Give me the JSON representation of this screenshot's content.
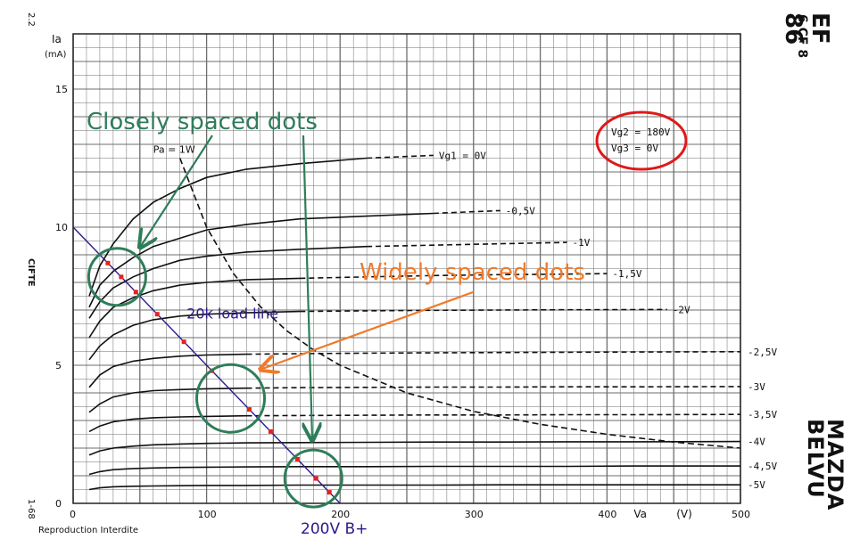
{
  "document": {
    "tube_code": "EF 86",
    "tube_equivalent": "6 CF 8",
    "manufacturer_line1": "MAZDA",
    "manufacturer_line2": "BELVU",
    "page_number": "2.2",
    "code_bottom": "1-68",
    "side_label": "CIFTE",
    "footer_note": "Reproduction Interdite"
  },
  "chart_data": {
    "type": "line",
    "title": "",
    "xlabel": "Va (V)",
    "ylabel": "Ia (mA)",
    "xlim": [
      0,
      500
    ],
    "ylim": [
      0,
      17
    ],
    "x_ticks": [
      0,
      100,
      200,
      300,
      400,
      500
    ],
    "x_tick_labels": [
      "0",
      "100",
      "200",
      "300",
      "400",
      "500"
    ],
    "y_ticks": [
      0,
      5,
      10,
      15
    ],
    "y_tick_labels": [
      "0",
      "5",
      "10",
      "15"
    ],
    "grid": true,
    "conditions": {
      "line1": "Vg2 = 180V",
      "line2": "Vg3 = 0V"
    },
    "series": [
      {
        "name": "Vg1 = 0V",
        "label": "Vg1 = 0V",
        "label_va": 270,
        "solid_to": 240,
        "x": [
          12,
          20,
          30,
          45,
          60,
          80,
          100,
          130,
          170,
          220,
          270
        ],
        "y": [
          7.5,
          8.6,
          9.4,
          10.3,
          10.9,
          11.4,
          11.8,
          12.1,
          12.3,
          12.5,
          12.6
        ]
      },
      {
        "name": "-0,5V",
        "label": "-0,5V",
        "label_va": 320,
        "solid_to": 300,
        "x": [
          12,
          20,
          30,
          45,
          60,
          80,
          100,
          130,
          170,
          220,
          270,
          320
        ],
        "y": [
          7.1,
          7.9,
          8.4,
          8.9,
          9.3,
          9.6,
          9.9,
          10.1,
          10.3,
          10.4,
          10.5,
          10.6
        ]
      },
      {
        "name": "-1V",
        "label": "-1V",
        "label_va": 370,
        "solid_to": 260,
        "x": [
          12,
          20,
          30,
          45,
          60,
          80,
          100,
          130,
          170,
          220,
          270,
          320,
          370
        ],
        "y": [
          6.7,
          7.3,
          7.8,
          8.2,
          8.5,
          8.8,
          8.95,
          9.1,
          9.2,
          9.3,
          9.35,
          9.4,
          9.45
        ]
      },
      {
        "name": "-1,5V",
        "label": "-1,5V",
        "label_va": 400,
        "solid_to": 200,
        "x": [
          12,
          20,
          30,
          45,
          60,
          80,
          100,
          130,
          170,
          220,
          270,
          320,
          370,
          400
        ],
        "y": [
          6.0,
          6.6,
          7.1,
          7.45,
          7.7,
          7.9,
          8.0,
          8.1,
          8.15,
          8.2,
          8.25,
          8.28,
          8.3,
          8.32
        ]
      },
      {
        "name": "-2V",
        "label": "-2V",
        "label_va": 445,
        "solid_to": 170,
        "x": [
          12,
          20,
          30,
          45,
          60,
          80,
          100,
          130,
          170,
          220,
          270,
          320,
          370,
          445
        ],
        "y": [
          5.2,
          5.7,
          6.1,
          6.45,
          6.65,
          6.78,
          6.85,
          6.9,
          6.95,
          6.97,
          6.99,
          7.0,
          7.01,
          7.02
        ]
      },
      {
        "name": "-2,5V",
        "label": "-2,5V",
        "label_va": 500,
        "solid_to": 150,
        "x": [
          12,
          20,
          30,
          45,
          60,
          80,
          100,
          130,
          170,
          220,
          270,
          320,
          370,
          420,
          500
        ],
        "y": [
          4.2,
          4.65,
          4.95,
          5.15,
          5.25,
          5.33,
          5.37,
          5.4,
          5.42,
          5.44,
          5.45,
          5.46,
          5.47,
          5.48,
          5.49
        ]
      },
      {
        "name": "-3V",
        "label": "-3V",
        "label_va": 500,
        "solid_to": 140,
        "x": [
          12,
          20,
          30,
          45,
          60,
          80,
          100,
          130,
          170,
          220,
          270,
          320,
          370,
          420,
          500
        ],
        "y": [
          3.3,
          3.6,
          3.85,
          4.0,
          4.08,
          4.12,
          4.15,
          4.17,
          4.19,
          4.2,
          4.21,
          4.21,
          4.22,
          4.22,
          4.23
        ]
      },
      {
        "name": "-3,5V",
        "label": "-3,5V",
        "label_va": 500,
        "solid_to": 130,
        "x": [
          12,
          20,
          30,
          45,
          60,
          80,
          100,
          130,
          170,
          220,
          270,
          320,
          370,
          420,
          500
        ],
        "y": [
          2.6,
          2.8,
          2.95,
          3.05,
          3.1,
          3.13,
          3.15,
          3.17,
          3.18,
          3.19,
          3.2,
          3.2,
          3.21,
          3.21,
          3.22
        ]
      },
      {
        "name": "-4V",
        "label": "-4V",
        "label_va": 500,
        "solid_to": 500,
        "x": [
          12,
          20,
          30,
          45,
          60,
          80,
          100,
          130,
          170,
          220,
          270,
          320,
          370,
          420,
          500
        ],
        "y": [
          1.75,
          1.9,
          2.0,
          2.07,
          2.12,
          2.15,
          2.17,
          2.19,
          2.2,
          2.21,
          2.22,
          2.22,
          2.23,
          2.23,
          2.24
        ]
      },
      {
        "name": "-4,5V",
        "label": "-4,5V",
        "label_va": 500,
        "solid_to": 500,
        "x": [
          12,
          20,
          30,
          45,
          60,
          80,
          100,
          130,
          170,
          220,
          270,
          320,
          370,
          420,
          500
        ],
        "y": [
          1.05,
          1.15,
          1.22,
          1.26,
          1.28,
          1.3,
          1.31,
          1.32,
          1.33,
          1.33,
          1.34,
          1.34,
          1.34,
          1.35,
          1.35
        ]
      },
      {
        "name": "-5V",
        "label": "-5V",
        "label_va": 500,
        "solid_to": 500,
        "x": [
          12,
          20,
          30,
          45,
          60,
          80,
          100,
          130,
          170,
          220,
          270,
          320,
          370,
          420,
          500
        ],
        "y": [
          0.5,
          0.56,
          0.6,
          0.62,
          0.63,
          0.64,
          0.65,
          0.65,
          0.66,
          0.66,
          0.66,
          0.67,
          0.67,
          0.67,
          0.67
        ]
      }
    ],
    "power_curve": {
      "label": "Pa = 1W",
      "label_va": 60,
      "label_ia": 12.7,
      "x": [
        80,
        100,
        120,
        140,
        160,
        180,
        200,
        250,
        300,
        350,
        400,
        450,
        500
      ],
      "y": [
        12.5,
        10.0,
        8.33,
        7.14,
        6.25,
        5.56,
        5.0,
        4.0,
        3.33,
        2.86,
        2.5,
        2.22,
        2.0
      ]
    },
    "load_line": {
      "label": "20k load line",
      "label_va": 85,
      "label_ia": 6.7,
      "x": [
        0,
        200
      ],
      "y": [
        10,
        0
      ]
    },
    "operating_points": {
      "x": [
        26,
        36,
        47,
        63,
        83,
        104,
        132,
        148,
        168,
        182,
        192
      ],
      "y": [
        8.7,
        8.2,
        7.65,
        6.85,
        5.85,
        4.8,
        3.4,
        2.6,
        1.6,
        0.9,
        0.4
      ]
    },
    "annotations": [
      {
        "text": "Closely spaced dots",
        "color": "#2e7d5a"
      },
      {
        "text": "Widely spaced dots",
        "color": "#f07a2a"
      },
      {
        "text": "200V B+",
        "color": "#2a1a8c"
      }
    ],
    "highlight_circles": [
      {
        "va": 33,
        "ia": 8.2
      },
      {
        "va": 118,
        "ia": 3.8
      },
      {
        "va": 180,
        "ia": 0.9
      }
    ],
    "colors": {
      "grid": "#6d6d6d",
      "curves": "#111111",
      "load_line": "#2a1a8c",
      "dots": "#e82020",
      "green": "#2e7d5a",
      "orange": "#f07a2a",
      "red_circle": "#e01818"
    }
  }
}
